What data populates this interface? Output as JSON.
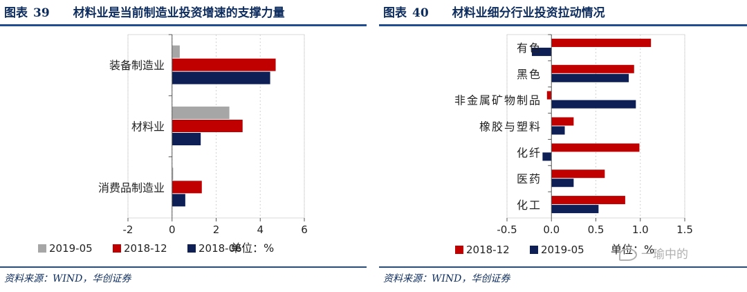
{
  "left": {
    "title_prefix": "图表",
    "title_number": "39",
    "title_text": "材料业是当前制造业投资增速的支撑力量",
    "source": "资料来源：WIND，华创证券",
    "unit_note": "单位：%",
    "chart_data": {
      "type": "bar",
      "orientation": "horizontal",
      "categories": [
        "装备制造业",
        "材料业",
        "消费品制造业"
      ],
      "series": [
        {
          "name": "2019-05",
          "color": "#a6a6a6",
          "values": [
            0.35,
            2.6,
            0.05
          ]
        },
        {
          "name": "2018-12",
          "color": "#c00000",
          "values": [
            4.7,
            3.2,
            1.35
          ]
        },
        {
          "name": "2018-06",
          "color": "#0d1f55",
          "values": [
            4.45,
            1.3,
            0.6
          ]
        }
      ],
      "xlim": [
        -2,
        6
      ],
      "xticks": [
        "-2",
        "0",
        "2",
        "4",
        "6"
      ],
      "grid": true,
      "legend": "bottom"
    }
  },
  "right": {
    "title_prefix": "图表",
    "title_number": "40",
    "title_text": "材料业细分行业投资拉动情况",
    "source": "资料来源：WIND，华创证券",
    "unit_note": "单位：%",
    "chart_data": {
      "type": "bar",
      "orientation": "horizontal",
      "categories": [
        "有色",
        "黑色",
        "非金属矿物制品",
        "橡胶与塑料",
        "化纤",
        "医药",
        "化工"
      ],
      "series": [
        {
          "name": "2018-12",
          "color": "#c00000",
          "values": [
            1.12,
            0.93,
            -0.05,
            0.25,
            0.99,
            0.6,
            0.83
          ]
        },
        {
          "name": "2019-05",
          "color": "#0d1f55",
          "values": [
            -0.22,
            0.87,
            0.95,
            0.15,
            -0.1,
            0.25,
            0.53
          ]
        }
      ],
      "xlim": [
        -0.5,
        1.5
      ],
      "xticks": [
        "-0.5",
        "0.0",
        "0.5",
        "1.0",
        "1.5"
      ],
      "grid": true,
      "legend": "bottom"
    }
  },
  "watermark": "一瑜中的"
}
